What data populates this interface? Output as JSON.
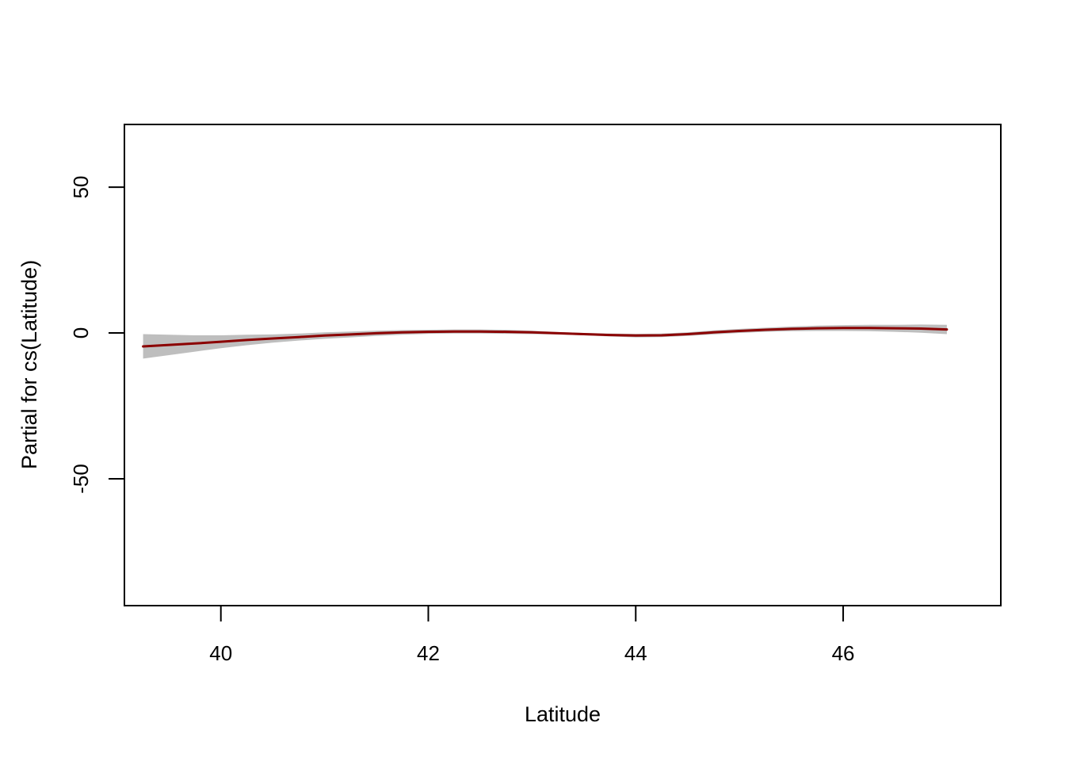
{
  "chart_data": {
    "type": "line",
    "xlabel": "Latitude",
    "ylabel": "Partial for cs(Latitude)",
    "xlim": [
      39.07,
      47.52
    ],
    "ylim": [
      -93.5,
      71.5
    ],
    "x_ticks": [
      40,
      42,
      44,
      46
    ],
    "x_tick_labels": [
      "40",
      "42",
      "44",
      "46"
    ],
    "y_ticks": [
      -50,
      0,
      50
    ],
    "y_tick_labels": [
      "-50",
      "0",
      "50"
    ],
    "grid": false,
    "legend": "none",
    "series": [
      {
        "x": [
          39.25,
          39.5,
          39.75,
          40.0,
          40.25,
          40.5,
          40.75,
          41.0,
          41.25,
          41.5,
          41.75,
          42.0,
          42.25,
          42.5,
          42.75,
          43.0,
          43.25,
          43.5,
          43.75,
          44.0,
          44.25,
          44.5,
          44.75,
          45.0,
          45.25,
          45.5,
          45.75,
          46.0,
          46.25,
          46.5,
          46.75,
          47.0
        ],
        "y": [
          -4.6,
          -4.1,
          -3.6,
          -3.0,
          -2.4,
          -1.9,
          -1.4,
          -0.9,
          -0.5,
          -0.1,
          0.2,
          0.4,
          0.5,
          0.5,
          0.4,
          0.2,
          -0.1,
          -0.4,
          -0.7,
          -0.9,
          -0.8,
          -0.4,
          0.2,
          0.7,
          1.1,
          1.4,
          1.6,
          1.7,
          1.7,
          1.6,
          1.5,
          1.2
        ],
        "lower": [
          -8.8,
          -7.6,
          -6.4,
          -5.2,
          -4.2,
          -3.3,
          -2.6,
          -2.0,
          -1.5,
          -1.0,
          -0.6,
          -0.3,
          -0.2,
          -0.2,
          -0.3,
          -0.4,
          -0.5,
          -0.8,
          -1.2,
          -1.5,
          -1.4,
          -1.0,
          -0.5,
          0.0,
          0.4,
          0.6,
          0.7,
          0.7,
          0.6,
          0.4,
          0.1,
          -0.4
        ],
        "upper": [
          -0.4,
          -0.6,
          -0.8,
          -0.8,
          -0.6,
          -0.5,
          -0.2,
          0.2,
          0.5,
          0.8,
          1.0,
          1.1,
          1.2,
          1.2,
          1.1,
          0.8,
          0.3,
          0.0,
          -0.2,
          -0.3,
          -0.2,
          0.2,
          0.9,
          1.4,
          1.8,
          2.2,
          2.5,
          2.7,
          2.8,
          2.8,
          2.9,
          2.8
        ],
        "line_color": "#8b0000",
        "band_color": "#bebebe"
      }
    ]
  }
}
